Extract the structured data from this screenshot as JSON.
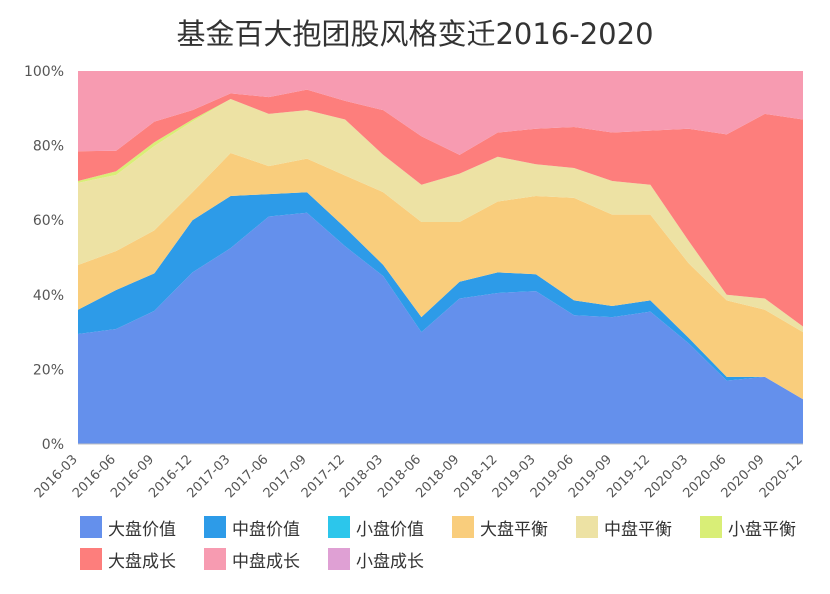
{
  "chart_data": {
    "type": "area",
    "stacked": "percent",
    "title": "基金百大抱团股风格变迁2016-2020",
    "xlabel": "",
    "ylabel": "",
    "ylim": [
      0,
      100
    ],
    "yticks": [
      "0%",
      "20%",
      "40%",
      "60%",
      "80%",
      "100%"
    ],
    "grid": false,
    "legend_position": "bottom",
    "categories": [
      "2016-03",
      "2016-06",
      "2016-09",
      "2016-12",
      "2017-03",
      "2017-06",
      "2017-09",
      "2017-12",
      "2018-03",
      "2018-06",
      "2018-09",
      "2018-12",
      "2019-03",
      "2019-06",
      "2019-09",
      "2019-12",
      "2020-03",
      "2020-06",
      "2020-09",
      "2020-12"
    ],
    "series": [
      {
        "name": "大盘价值",
        "color": "#6490ec",
        "values": [
          29.5,
          31,
          35.5,
          46,
          52.5,
          61,
          62,
          53,
          45,
          30,
          39,
          40.5,
          41,
          34.5,
          34,
          35.5,
          27,
          17,
          18,
          12
        ]
      },
      {
        "name": "中盘价值",
        "color": "#2d9be8",
        "values": [
          6.5,
          10.5,
          10,
          14,
          14,
          6,
          5.5,
          5,
          3,
          4,
          4.5,
          5.5,
          4.5,
          4,
          3,
          3,
          1.5,
          1,
          0,
          0
        ]
      },
      {
        "name": "小盘价值",
        "color": "#2cc6eb",
        "values": [
          0,
          0,
          0,
          0,
          0,
          0,
          0,
          0,
          0,
          0,
          0,
          0,
          0,
          0,
          0,
          0,
          0,
          0,
          0,
          0
        ]
      },
      {
        "name": "大盘平衡",
        "color": "#f9cd7c",
        "values": [
          12,
          10.5,
          11.5,
          7.5,
          11.5,
          7.5,
          9,
          14,
          19.5,
          25.5,
          16,
          19,
          21,
          27.5,
          24.5,
          23,
          20,
          20.5,
          18,
          18
        ]
      },
      {
        "name": "中盘平衡",
        "color": "#ede2a4",
        "values": [
          22,
          20.5,
          22.5,
          19,
          14.5,
          14,
          13,
          15,
          10,
          10,
          13,
          12,
          8.5,
          8,
          9,
          8,
          6,
          1.5,
          3,
          1.5
        ]
      },
      {
        "name": "小盘平衡",
        "color": "#d9ee77",
        "values": [
          0.5,
          1,
          1,
          0.5,
          0,
          0,
          0,
          0,
          0,
          0,
          0,
          0,
          0,
          0,
          0,
          0,
          0,
          0,
          0,
          0
        ]
      },
      {
        "name": "大盘成长",
        "color": "#fd7e7c",
        "values": [
          8,
          5.5,
          5.5,
          2.5,
          1.5,
          4.5,
          5.5,
          5,
          12,
          13,
          5,
          6.5,
          9.5,
          11,
          13,
          14.5,
          30,
          43,
          49.5,
          55.5
        ]
      },
      {
        "name": "中盘成长",
        "color": "#f79bb1",
        "values": [
          21.5,
          21.5,
          13.5,
          10.5,
          6,
          7,
          5,
          8,
          10.5,
          17.5,
          22.5,
          16.5,
          15.5,
          15,
          16.5,
          16,
          15.5,
          17,
          11.5,
          13
        ]
      },
      {
        "name": "小盘成长",
        "color": "#dfa0d4",
        "values": [
          0,
          0,
          0,
          0,
          0,
          0,
          0,
          0,
          0,
          0,
          0,
          0,
          0,
          0,
          0,
          0,
          0,
          0,
          0,
          0
        ]
      }
    ]
  }
}
